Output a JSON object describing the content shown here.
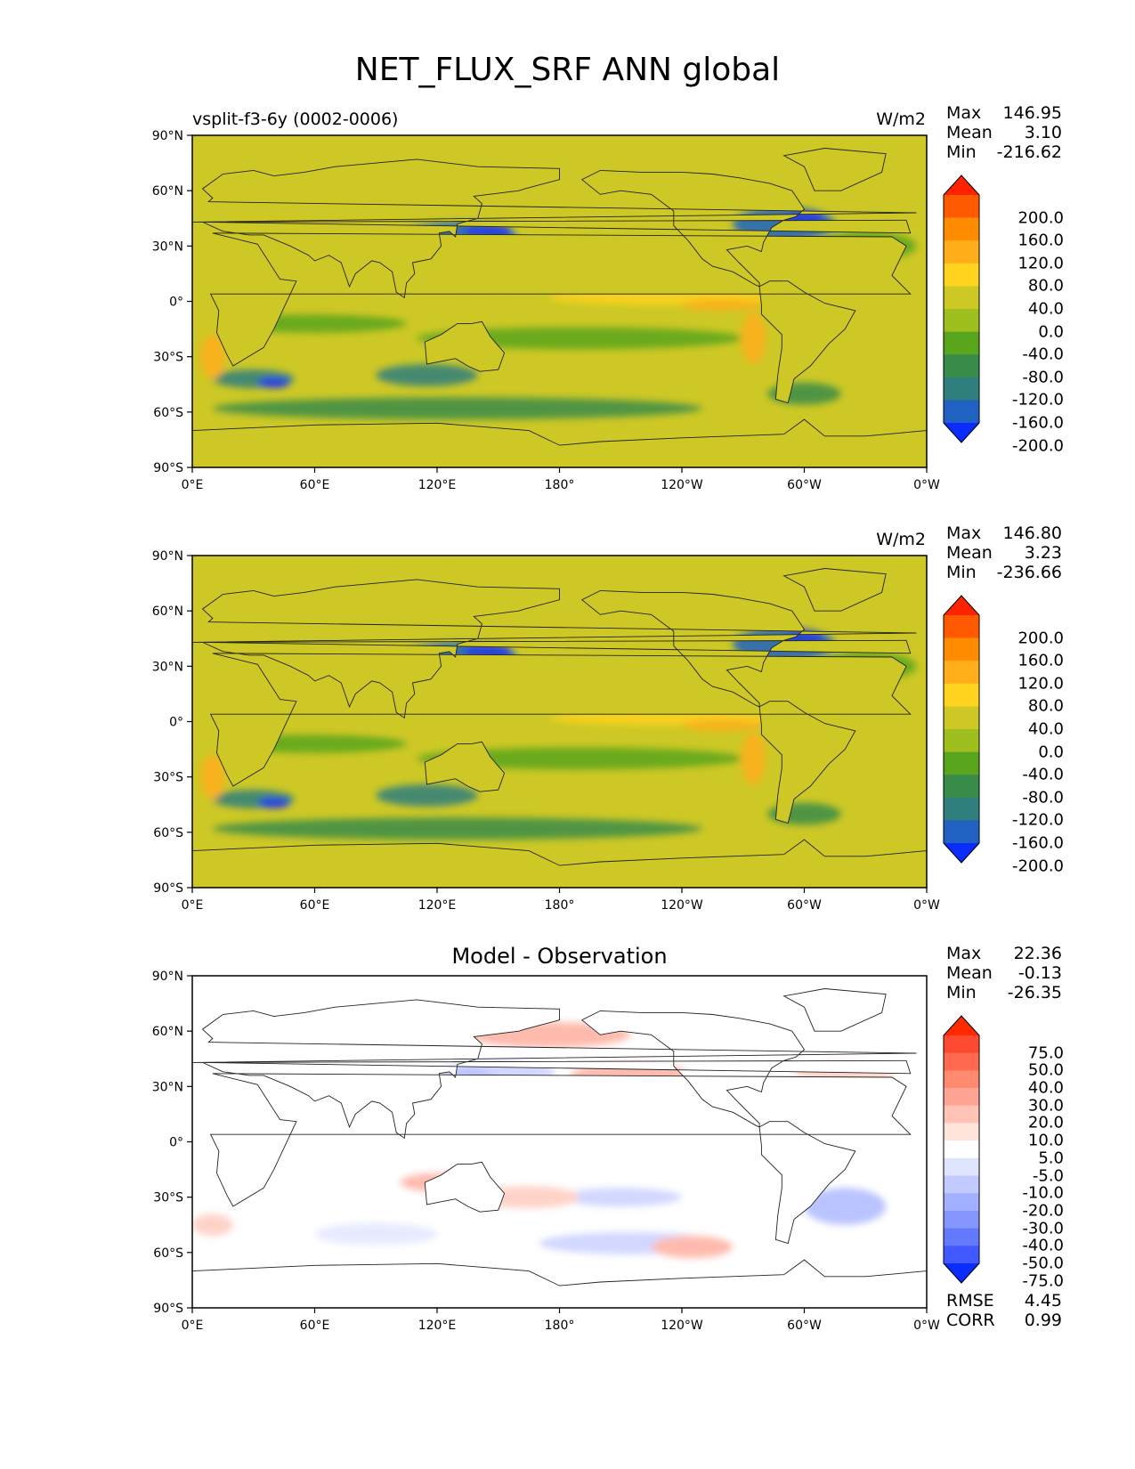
{
  "title": "NET_FLUX_SRF ANN global",
  "lat_ticks": [
    "90°N",
    "60°N",
    "30°N",
    "0°",
    "30°S",
    "60°S",
    "90°S"
  ],
  "lon_ticks": [
    "0°E",
    "60°E",
    "120°E",
    "180°",
    "120°W",
    "60°W",
    "0°W"
  ],
  "panels": [
    {
      "id": "test",
      "case_label": "vsplit-f3-6y (0002-0006)",
      "subtitle": "",
      "units": "W/m2",
      "stats": {
        "max_label": "Max",
        "max": "146.95",
        "mean_label": "Mean",
        "mean": "3.10",
        "min_label": "Min",
        "min": "-216.62"
      },
      "colorbar": {
        "labels": [
          "200.0",
          "160.0",
          "120.0",
          "80.0",
          "40.0",
          "0.0",
          "-40.0",
          "-80.0",
          "-120.0",
          "-160.0",
          "-200.0"
        ],
        "colors": [
          "#ff2200",
          "#ff5a00",
          "#ff8c00",
          "#ffae1a",
          "#ffd21e",
          "#cdc826",
          "#9fbf1f",
          "#5aa51e",
          "#3a8c4a",
          "#2f7f7f",
          "#1f62c2",
          "#0a2cff"
        ]
      }
    },
    {
      "id": "reference",
      "case_label": "",
      "subtitle": "",
      "units": "W/m2",
      "stats": {
        "max_label": "Max",
        "max": "146.80",
        "mean_label": "Mean",
        "mean": "3.23",
        "min_label": "Min",
        "min": "-236.66"
      },
      "colorbar": {
        "labels": [
          "200.0",
          "160.0",
          "120.0",
          "80.0",
          "40.0",
          "0.0",
          "-40.0",
          "-80.0",
          "-120.0",
          "-160.0",
          "-200.0"
        ],
        "colors": [
          "#ff2200",
          "#ff5a00",
          "#ff8c00",
          "#ffae1a",
          "#ffd21e",
          "#cdc826",
          "#9fbf1f",
          "#5aa51e",
          "#3a8c4a",
          "#2f7f7f",
          "#1f62c2",
          "#0a2cff"
        ]
      }
    },
    {
      "id": "diff",
      "case_label": "",
      "subtitle": "Model - Observation",
      "units": "",
      "stats": {
        "max_label": "Max",
        "max": "22.36",
        "mean_label": "Mean",
        "mean": "-0.13",
        "min_label": "Min",
        "min": "-26.35"
      },
      "colorbar": {
        "labels": [
          "75.0",
          "50.0",
          "40.0",
          "30.0",
          "20.0",
          "10.0",
          "5.0",
          "-5.0",
          "-10.0",
          "-20.0",
          "-30.0",
          "-40.0",
          "-50.0",
          "-75.0"
        ],
        "colors": [
          "#ff2a00",
          "#ff4a32",
          "#ff6a4e",
          "#ff8a70",
          "#ffa493",
          "#ffc4b6",
          "#ffe4dc",
          "#ffffff",
          "#dfe4ff",
          "#c2caff",
          "#a3b0ff",
          "#8596ff",
          "#6579ff",
          "#3f58ff",
          "#0a2cff"
        ]
      }
    }
  ],
  "diff_metrics": {
    "rmse_label": "RMSE",
    "rmse": "4.45",
    "corr_label": "CORR",
    "corr": "0.99"
  },
  "colors": {
    "map_base": "#cdc826",
    "diff_base": "#ffffff",
    "coast": "#222222"
  }
}
